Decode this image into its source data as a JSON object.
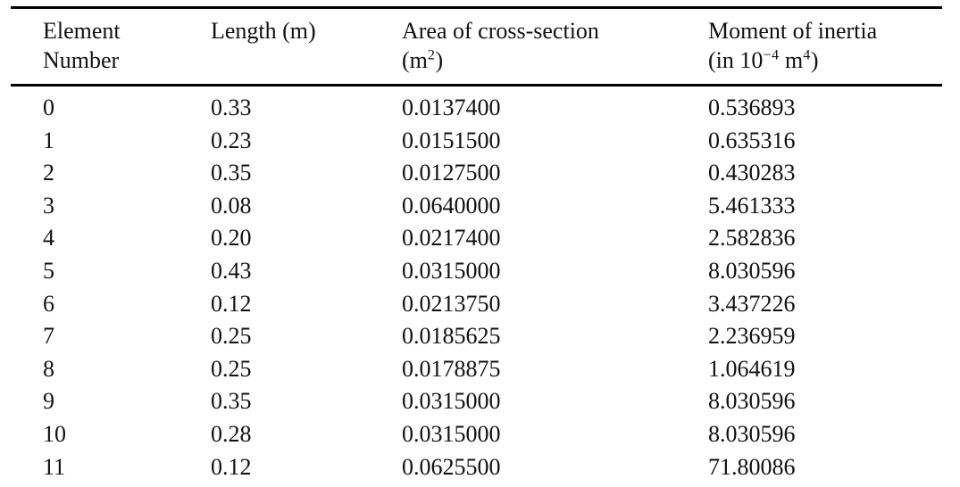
{
  "table": {
    "columns": [
      {
        "line1": "Element",
        "line2": "Number"
      },
      {
        "line1": "Length (m)"
      },
      {
        "line1": "Area of cross-section",
        "unit_pre": "(m",
        "unit_sup": "2",
        "unit_post": ")"
      },
      {
        "line1": "Moment of inertia",
        "unit_pre": "(in 10",
        "unit_sup1": "−4",
        "unit_mid": " m",
        "unit_sup2": "4",
        "unit_post": ")"
      }
    ],
    "rows": [
      {
        "element_number": "0",
        "length_m": "0.33",
        "area_m2": "0.0137400",
        "moment_inertia": "0.536893"
      },
      {
        "element_number": "1",
        "length_m": "0.23",
        "area_m2": "0.0151500",
        "moment_inertia": "0.635316"
      },
      {
        "element_number": "2",
        "length_m": "0.35",
        "area_m2": "0.0127500",
        "moment_inertia": "0.430283"
      },
      {
        "element_number": "3",
        "length_m": "0.08",
        "area_m2": "0.0640000",
        "moment_inertia": "5.461333"
      },
      {
        "element_number": "4",
        "length_m": "0.20",
        "area_m2": "0.0217400",
        "moment_inertia": "2.582836"
      },
      {
        "element_number": "5",
        "length_m": "0.43",
        "area_m2": "0.0315000",
        "moment_inertia": "8.030596"
      },
      {
        "element_number": "6",
        "length_m": "0.12",
        "area_m2": "0.0213750",
        "moment_inertia": "3.437226"
      },
      {
        "element_number": "7",
        "length_m": "0.25",
        "area_m2": "0.0185625",
        "moment_inertia": "2.236959"
      },
      {
        "element_number": "8",
        "length_m": "0.25",
        "area_m2": "0.0178875",
        "moment_inertia": "1.064619"
      },
      {
        "element_number": "9",
        "length_m": "0.35",
        "area_m2": "0.0315000",
        "moment_inertia": "8.030596"
      },
      {
        "element_number": "10",
        "length_m": "0.28",
        "area_m2": "0.0315000",
        "moment_inertia": "8.030596"
      },
      {
        "element_number": "11",
        "length_m": "0.12",
        "area_m2": "0.0625500",
        "moment_inertia": "71.80086"
      }
    ]
  },
  "colors": {
    "text": "#111111",
    "rule": "#000000",
    "background": "#ffffff"
  }
}
